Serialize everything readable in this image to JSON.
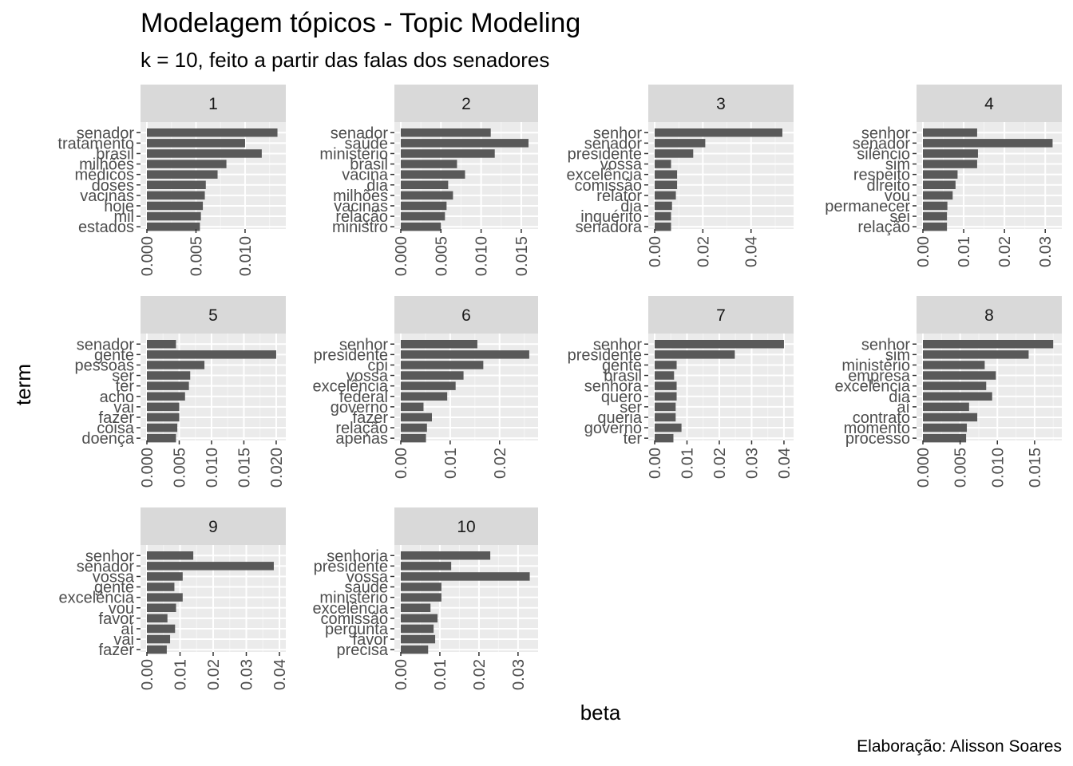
{
  "chart_data": {
    "type": "bar",
    "orientation": "horizontal",
    "title": "Modelagem tópicos - Topic Modeling",
    "subtitle": "k = 10, feito a partir das falas dos senadores",
    "xlabel": "beta",
    "ylabel": "term",
    "caption": "Elaboração: Alisson Soares",
    "grid": true,
    "facets": [
      {
        "label": "1",
        "terms": [
          "senador",
          "tratamento",
          "brasil",
          "milhões",
          "médicos",
          "doses",
          "vacinas",
          "hoje",
          "mil",
          "estados"
        ],
        "values": [
          0.0133,
          0.01,
          0.0117,
          0.0081,
          0.0072,
          0.006,
          0.0059,
          0.0057,
          0.0055,
          0.0054
        ],
        "xlim": [
          0,
          0.0135
        ],
        "ticks": [
          0,
          0.005,
          0.01
        ],
        "tick_labels": [
          "0.000",
          "0.005",
          "0.010"
        ]
      },
      {
        "label": "2",
        "terms": [
          "senador",
          "saúde",
          "ministério",
          "brasil",
          "vacina",
          "dia",
          "milhões",
          "vacinas",
          "relação",
          "ministro"
        ],
        "values": [
          0.0112,
          0.0159,
          0.0117,
          0.007,
          0.008,
          0.0059,
          0.0065,
          0.0057,
          0.0055,
          0.005
        ],
        "xlim": [
          0,
          0.0163
        ],
        "ticks": [
          0,
          0.005,
          0.01,
          0.015
        ],
        "tick_labels": [
          "0.000",
          "0.005",
          "0.010",
          "0.015"
        ]
      },
      {
        "label": "3",
        "terms": [
          "senhor",
          "senador",
          "presidente",
          "vossa",
          "excelência",
          "comissão",
          "relator",
          "dia",
          "inquérito",
          "senadora"
        ],
        "values": [
          0.053,
          0.021,
          0.016,
          0.0068,
          0.0093,
          0.0093,
          0.0088,
          0.0072,
          0.0068,
          0.0068
        ],
        "xlim": [
          0,
          0.055
        ],
        "ticks": [
          0,
          0.02,
          0.04
        ],
        "tick_labels": [
          "0.00",
          "0.02",
          "0.04"
        ]
      },
      {
        "label": "4",
        "terms": [
          "senhor",
          "senador",
          "silêncio",
          "sim",
          "respeito",
          "direito",
          "vou",
          "permanecer",
          "sei",
          "relação"
        ],
        "values": [
          0.0133,
          0.0318,
          0.0135,
          0.0133,
          0.0085,
          0.008,
          0.0073,
          0.006,
          0.0059,
          0.0059
        ],
        "xlim": [
          0,
          0.0325
        ],
        "ticks": [
          0,
          0.01,
          0.02,
          0.03
        ],
        "tick_labels": [
          "0.00",
          "0.01",
          "0.02",
          "0.03"
        ]
      },
      {
        "label": "5",
        "terms": [
          "senador",
          "gente",
          "pessoas",
          "ser",
          "ter",
          "acho",
          "vai",
          "fazer",
          "coisa",
          "doença"
        ],
        "values": [
          0.0045,
          0.02,
          0.0089,
          0.0067,
          0.0065,
          0.0059,
          0.005,
          0.005,
          0.0047,
          0.0045
        ],
        "xlim": [
          0,
          0.0205
        ],
        "ticks": [
          0,
          0.005,
          0.01,
          0.015,
          0.02
        ],
        "tick_labels": [
          "0.000",
          "0.005",
          "0.010",
          "0.015",
          "0.020"
        ]
      },
      {
        "label": "6",
        "terms": [
          "senhor",
          "presidente",
          "cpi",
          "vossa",
          "excelência",
          "federal",
          "governo",
          "fazer",
          "relação",
          "apenas"
        ],
        "values": [
          0.0155,
          0.026,
          0.0167,
          0.0127,
          0.0111,
          0.0094,
          0.0046,
          0.0063,
          0.0053,
          0.0051
        ],
        "xlim": [
          0,
          0.0265
        ],
        "ticks": [
          0,
          0.01,
          0.02
        ],
        "tick_labels": [
          "0.00",
          "0.01",
          "0.02"
        ]
      },
      {
        "label": "7",
        "terms": [
          "senhor",
          "presidente",
          "gente",
          "brasil",
          "senhora",
          "quero",
          "ser",
          "queria",
          "governo",
          "ter"
        ],
        "values": [
          0.04,
          0.0248,
          0.0068,
          0.006,
          0.0068,
          0.0068,
          0.0065,
          0.0065,
          0.0083,
          0.0058
        ],
        "xlim": [
          0,
          0.041
        ],
        "ticks": [
          0,
          0.01,
          0.02,
          0.03,
          0.04
        ],
        "tick_labels": [
          "0.00",
          "0.01",
          "0.02",
          "0.03",
          "0.04"
        ]
      },
      {
        "label": "8",
        "terms": [
          "senhor",
          "sim",
          "ministério",
          "empresa",
          "excelência",
          "dia",
          "aí",
          "contrato",
          "momento",
          "processo"
        ],
        "values": [
          0.0175,
          0.0142,
          0.0083,
          0.0098,
          0.0085,
          0.0093,
          0.0062,
          0.0073,
          0.0059,
          0.0058
        ],
        "xlim": [
          0,
          0.0178
        ],
        "ticks": [
          0,
          0.005,
          0.01,
          0.015
        ],
        "tick_labels": [
          "0.000",
          "0.005",
          "0.010",
          "0.015"
        ]
      },
      {
        "label": "9",
        "terms": [
          "senhor",
          "senador",
          "vossa",
          "gente",
          "excelência",
          "vou",
          "favor",
          "aí",
          "vai",
          "fazer"
        ],
        "values": [
          0.014,
          0.0383,
          0.0108,
          0.0083,
          0.0108,
          0.0088,
          0.0062,
          0.0085,
          0.007,
          0.006
        ],
        "xlim": [
          0,
          0.04
        ],
        "ticks": [
          0,
          0.01,
          0.02,
          0.03,
          0.04
        ],
        "tick_labels": [
          "0.00",
          "0.01",
          "0.02",
          "0.03",
          "0.04"
        ]
      },
      {
        "label": "10",
        "terms": [
          "senhoria",
          "presidente",
          "vossa",
          "saúde",
          "ministério",
          "excelência",
          "comissão",
          "pergunta",
          "favor",
          "precisa"
        ],
        "values": [
          0.0229,
          0.0129,
          0.033,
          0.0104,
          0.0104,
          0.0076,
          0.0094,
          0.0084,
          0.0088,
          0.007
        ],
        "xlim": [
          0,
          0.0335
        ],
        "ticks": [
          0,
          0.01,
          0.02,
          0.03
        ],
        "tick_labels": [
          "0.00",
          "0.01",
          "0.02",
          "0.03"
        ]
      }
    ]
  }
}
